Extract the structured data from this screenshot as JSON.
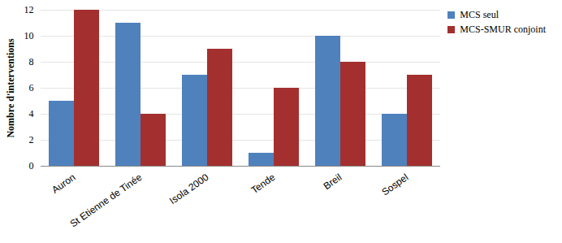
{
  "chart_data": {
    "type": "bar",
    "y_label": "Nombre d'interventions",
    "categories": [
      "Auron",
      "St Etienne de Tinée",
      "Isola 2000",
      "Tende",
      "Breil",
      "Sospel"
    ],
    "series": [
      {
        "name": "MCS seul",
        "color": "#4f81bd",
        "values": [
          5,
          11,
          7,
          1,
          10,
          4
        ]
      },
      {
        "name": "MCS-SMUR conjoint",
        "color": "#a3302e",
        "values": [
          12,
          4,
          9,
          6,
          8,
          7
        ]
      }
    ],
    "ylim": [
      0,
      12
    ],
    "yticks": [
      0,
      2,
      4,
      6,
      8,
      10,
      12
    ],
    "grid": true,
    "legend": "top-right"
  }
}
